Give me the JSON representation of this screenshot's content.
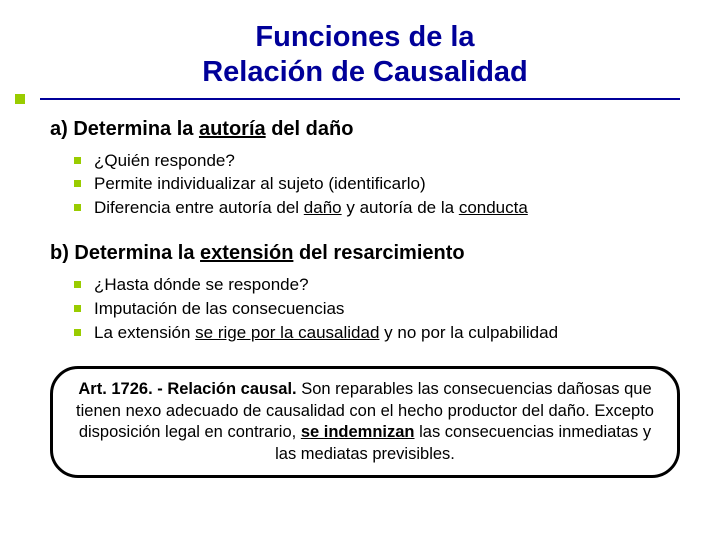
{
  "title_line1": "Funciones de la",
  "title_line2": "Relación de Causalidad",
  "section_a": {
    "prefix": "a) Determina la ",
    "underlined": "autoría",
    "suffix": " del daño",
    "bullets": {
      "b1": "¿Quién responde?",
      "b2": "Permite individualizar al sujeto (identificarlo)",
      "b3_pre": "Diferencia entre autoría del ",
      "b3_u1": "daño",
      "b3_mid": " y autoría de la ",
      "b3_u2": "conducta"
    }
  },
  "section_b": {
    "prefix": "b) Determina la ",
    "underlined": "extensión",
    "suffix": " del resarcimiento",
    "bullets": {
      "b1": "¿Hasta dónde se responde?",
      "b2": "Imputación de las consecuencias",
      "b3_pre": "La extensión ",
      "b3_u": "se rige por la causalidad",
      "b3_post": " y no por la culpabilidad"
    }
  },
  "article": {
    "bold1": "Art. 1726. - Relación causal. ",
    "text1": "Son reparables las consecuencias dañosas que tienen nexo adecuado de causalidad con el hecho productor del daño. Excepto disposición legal en contrario, ",
    "bold_u": "se indemnizan",
    "text2": " las consecuencias inmediatas y las mediatas previsibles."
  },
  "colors": {
    "title_color": "#000099",
    "accent_green": "#99cc00",
    "text_color": "#000000",
    "background": "#ffffff"
  }
}
